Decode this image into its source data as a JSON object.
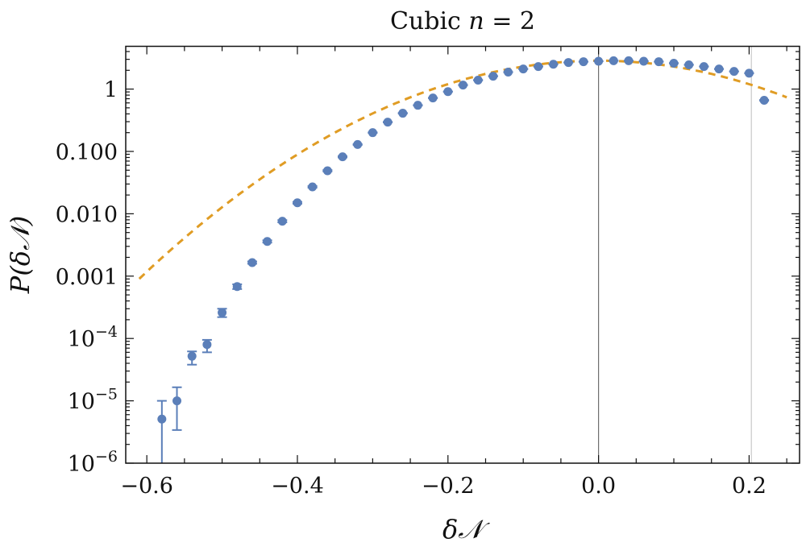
{
  "chart_data": {
    "type": "scatter",
    "title": "Cubic n = 2",
    "title_parts": {
      "text": "Cubic ",
      "var": "n",
      "rest": " = 2"
    },
    "xlabel": "δ𝒩",
    "ylabel": "P(δ𝒩)",
    "xlim": [
      -0.628,
      0.267
    ],
    "ylim": [
      1e-06,
      4.85
    ],
    "yscale": "log",
    "grid": false,
    "legend": "none",
    "x_ticks": [
      {
        "value": -0.6,
        "label": "−0.6"
      },
      {
        "value": -0.4,
        "label": "−0.4"
      },
      {
        "value": -0.2,
        "label": "−0.2"
      },
      {
        "value": 0.0,
        "label": "0.0"
      },
      {
        "value": 0.2,
        "label": "0.2"
      }
    ],
    "y_ticks": [
      {
        "value": 1,
        "label": "1"
      },
      {
        "value": 0.1,
        "label": "0.100"
      },
      {
        "value": 0.01,
        "label": "0.010"
      },
      {
        "value": 0.001,
        "label": "0.001"
      },
      {
        "value": 0.0001,
        "label": "10",
        "exp": "−4"
      },
      {
        "value": 1e-05,
        "label": "10",
        "exp": "−5"
      },
      {
        "value": 1e-06,
        "label": "10",
        "exp": "−6"
      }
    ],
    "vertical_lines": [
      {
        "x": 0.0,
        "color": "#6e6e6e"
      },
      {
        "x": 0.203,
        "color": "#c8c8c8"
      }
    ],
    "series": [
      {
        "kind": "points-with-errorbars",
        "color": "#5b7fb9",
        "x": [
          -0.58,
          -0.56,
          -0.54,
          -0.52,
          -0.5,
          -0.48,
          -0.46,
          -0.44,
          -0.42,
          -0.4,
          -0.38,
          -0.36,
          -0.34,
          -0.32,
          -0.3,
          -0.28,
          -0.26,
          -0.24,
          -0.22,
          -0.2,
          -0.18,
          -0.16,
          -0.14,
          -0.12,
          -0.1,
          -0.08,
          -0.06,
          -0.04,
          -0.02,
          0.0,
          0.02,
          0.04,
          0.06,
          0.08,
          0.1,
          0.12,
          0.14,
          0.16,
          0.18,
          0.2,
          0.22
        ],
        "y": [
          5.1e-06,
          1e-05,
          5.2e-05,
          8e-05,
          0.00026,
          0.00068,
          0.00165,
          0.0036,
          0.0076,
          0.015,
          0.027,
          0.049,
          0.082,
          0.129,
          0.2,
          0.295,
          0.41,
          0.55,
          0.72,
          0.91,
          1.16,
          1.39,
          1.61,
          1.87,
          2.1,
          2.3,
          2.5,
          2.67,
          2.75,
          2.8,
          2.85,
          2.85,
          2.8,
          2.75,
          2.6,
          2.45,
          2.3,
          2.1,
          1.92,
          1.8,
          0.66
        ],
        "y_err_low": [
          1e-06,
          3.4e-06,
          3.8e-05,
          6e-05,
          0.00022,
          0.00062,
          0.00158,
          0.00345,
          0.0073,
          0.0145,
          0.0262,
          0.0478,
          0.08,
          0.127,
          0.198,
          0.292,
          0.405,
          0.545,
          0.715,
          0.905,
          1.15,
          1.38,
          1.6,
          1.86,
          2.09,
          2.29,
          2.49,
          2.66,
          2.74,
          2.79,
          2.84,
          2.84,
          2.79,
          2.74,
          2.59,
          2.44,
          2.29,
          2.09,
          1.91,
          1.79,
          0.65
        ],
        "y_err_high": [
          1e-05,
          1.65e-05,
          6.2e-05,
          9.5e-05,
          0.0003,
          0.00074,
          0.00172,
          0.00375,
          0.0079,
          0.0155,
          0.0278,
          0.0502,
          0.084,
          0.131,
          0.202,
          0.298,
          0.415,
          0.555,
          0.725,
          0.915,
          1.17,
          1.4,
          1.62,
          1.88,
          2.11,
          2.31,
          2.51,
          2.68,
          2.76,
          2.81,
          2.86,
          2.86,
          2.81,
          2.76,
          2.61,
          2.46,
          2.31,
          2.11,
          1.93,
          1.81,
          0.67
        ]
      },
      {
        "kind": "dashed-curve",
        "color": "#e09c24",
        "function": "gaussian",
        "mean": 0.0,
        "sigma": 0.152,
        "peak": 2.85,
        "x_range": [
          -0.61,
          0.25
        ]
      }
    ]
  }
}
